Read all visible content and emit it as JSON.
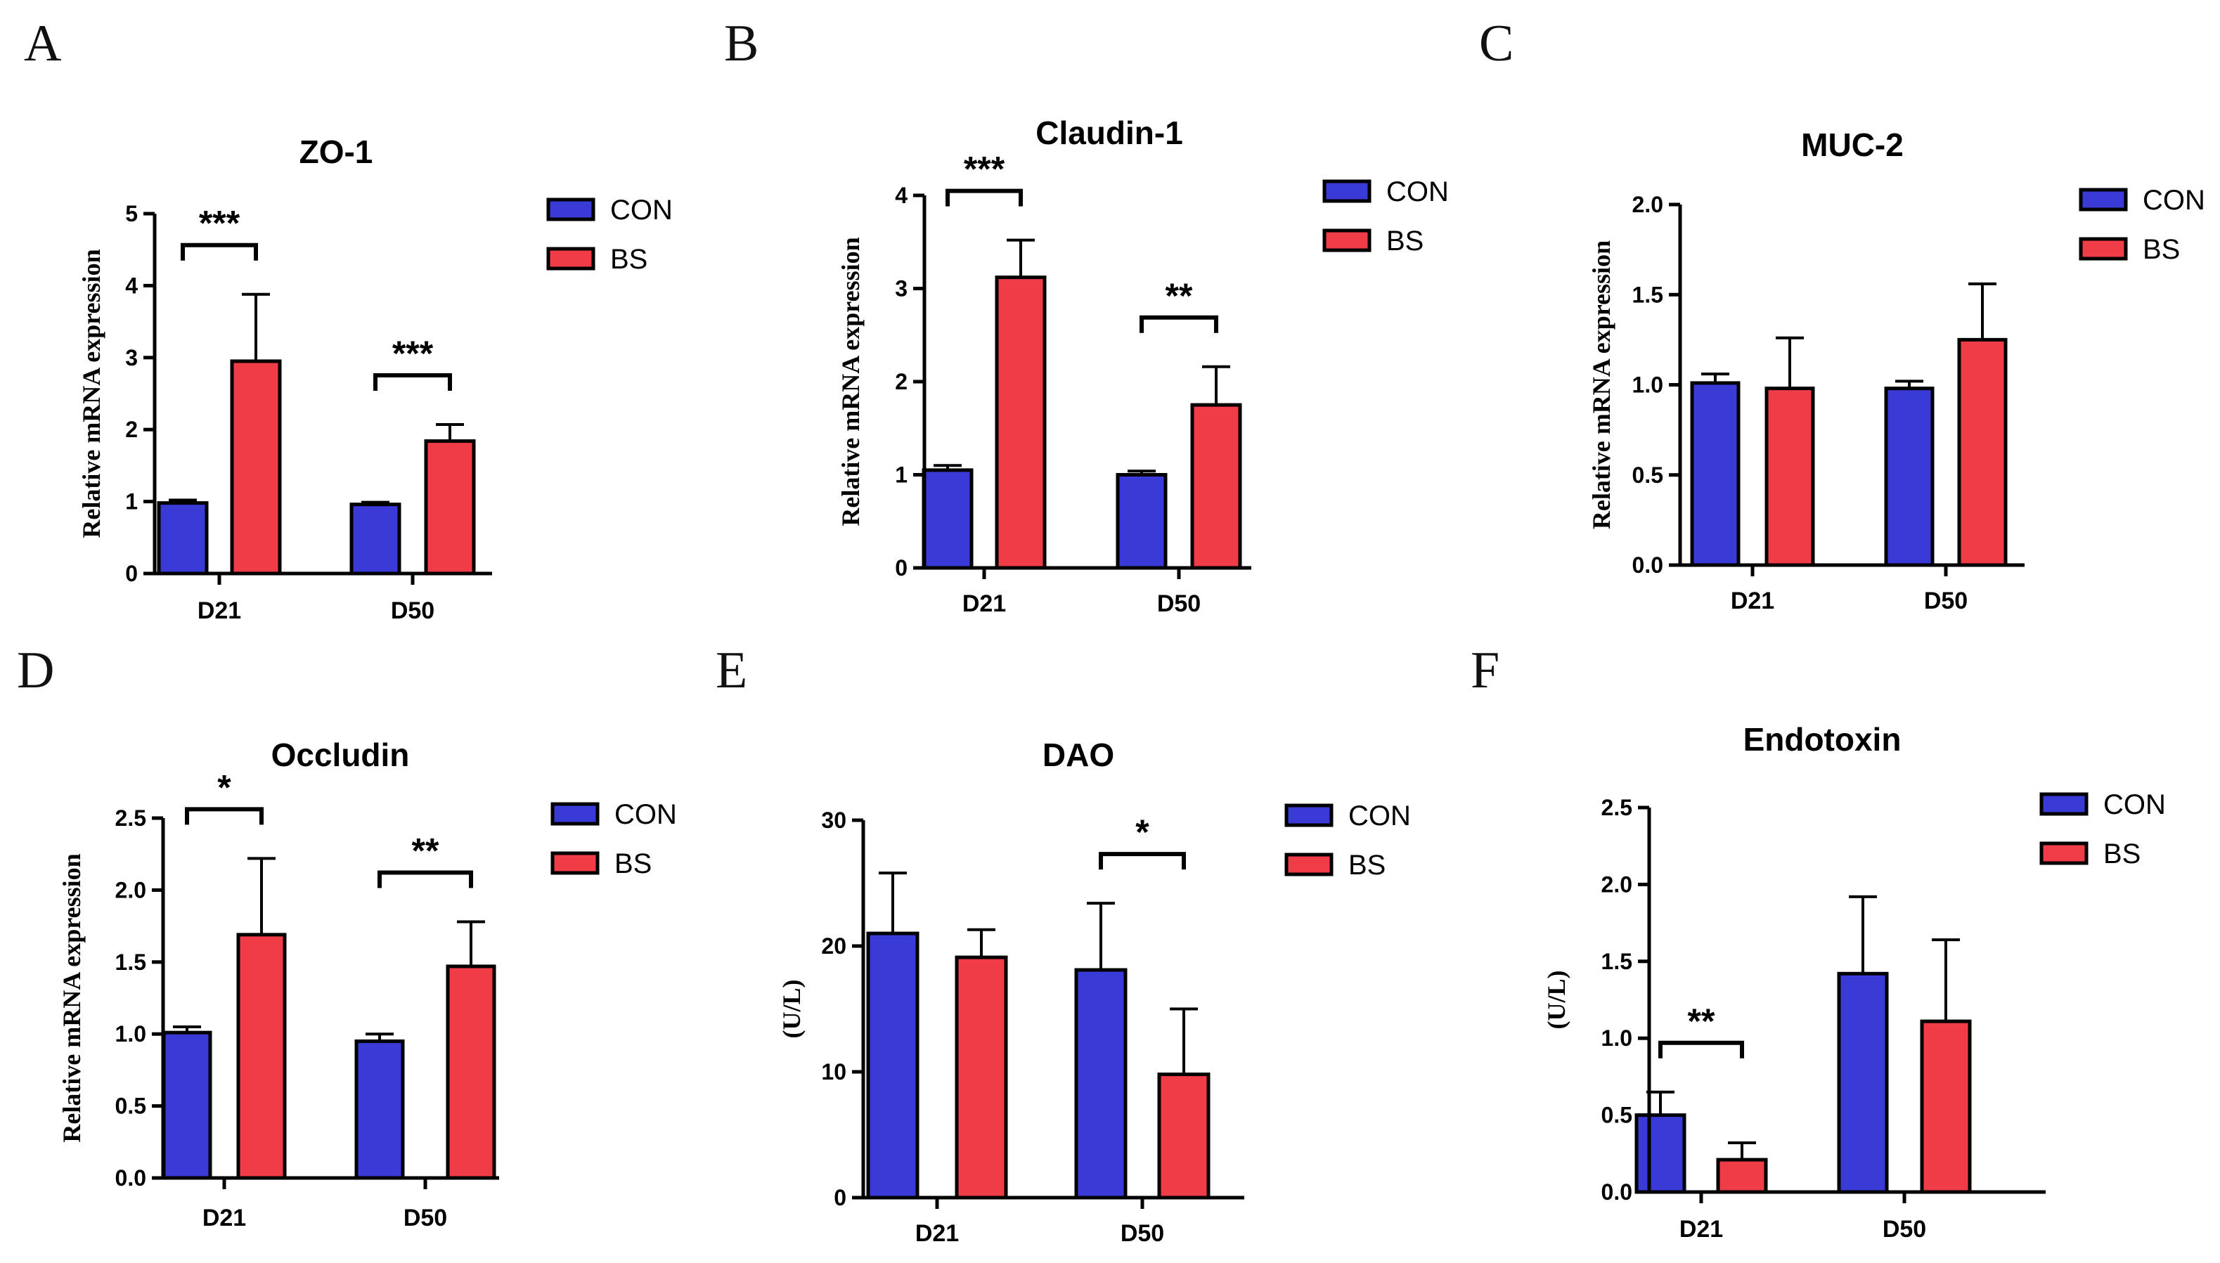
{
  "figure": {
    "colors": {
      "CON": "#3a3ad6",
      "BS": "#f03c46"
    },
    "legend_labels": [
      "CON",
      "BS"
    ]
  },
  "chart_data": [
    {
      "panel": "A",
      "type": "bar",
      "title": "ZO-1",
      "ylabel": "Relative mRNA expression",
      "xlabel": "",
      "categories": [
        "D21",
        "D50"
      ],
      "ylim": [
        0,
        5
      ],
      "yticks": [
        0,
        1,
        2,
        3,
        4,
        5
      ],
      "ytick_labels": [
        "0",
        "1",
        "2",
        "3",
        "4",
        "5"
      ],
      "series": [
        {
          "name": "CON",
          "values": [
            0.98,
            0.96
          ],
          "errors": [
            0.04,
            0.03
          ]
        },
        {
          "name": "BS",
          "values": [
            2.95,
            1.84
          ],
          "errors": [
            0.93,
            0.23
          ]
        }
      ],
      "significance": [
        {
          "category": "D21",
          "label": "***"
        },
        {
          "category": "D50",
          "label": "***"
        }
      ],
      "legend_position": "top-right"
    },
    {
      "panel": "B",
      "type": "bar",
      "title": "Claudin-1",
      "ylabel": "Relative mRNA expression",
      "xlabel": "",
      "categories": [
        "D21",
        "D50"
      ],
      "ylim": [
        0,
        4
      ],
      "yticks": [
        0,
        1,
        2,
        3,
        4
      ],
      "ytick_labels": [
        "0",
        "1",
        "2",
        "3",
        "4"
      ],
      "series": [
        {
          "name": "CON",
          "values": [
            1.05,
            1.0
          ],
          "errors": [
            0.05,
            0.04
          ]
        },
        {
          "name": "BS",
          "values": [
            3.12,
            1.75
          ],
          "errors": [
            0.4,
            0.41
          ]
        }
      ],
      "significance": [
        {
          "category": "D21",
          "label": "***"
        },
        {
          "category": "D50",
          "label": "**"
        }
      ],
      "legend_position": "top-right"
    },
    {
      "panel": "C",
      "type": "bar",
      "title": "MUC-2",
      "ylabel": "Relative mRNA expression",
      "xlabel": "",
      "categories": [
        "D21",
        "D50"
      ],
      "ylim": [
        0,
        2
      ],
      "yticks": [
        0,
        0.5,
        1,
        1.5,
        2
      ],
      "ytick_labels": [
        "0.0",
        "0.5",
        "1.0",
        "1.5",
        "2.0"
      ],
      "series": [
        {
          "name": "CON",
          "values": [
            1.01,
            0.98
          ],
          "errors": [
            0.05,
            0.04
          ]
        },
        {
          "name": "BS",
          "values": [
            0.98,
            1.25
          ],
          "errors": [
            0.28,
            0.31
          ]
        }
      ],
      "significance": [],
      "legend_position": "top-right"
    },
    {
      "panel": "D",
      "type": "bar",
      "title": "Occludin",
      "ylabel": "Relative mRNA expression",
      "xlabel": "",
      "categories": [
        "D21",
        "D50"
      ],
      "ylim": [
        0,
        2.5
      ],
      "yticks": [
        0,
        0.5,
        1,
        1.5,
        2,
        2.5
      ],
      "ytick_labels": [
        "0.0",
        "0.5",
        "1.0",
        "1.5",
        "2.0",
        "2.5"
      ],
      "series": [
        {
          "name": "CON",
          "values": [
            1.01,
            0.95
          ],
          "errors": [
            0.04,
            0.05
          ]
        },
        {
          "name": "BS",
          "values": [
            1.69,
            1.47
          ],
          "errors": [
            0.53,
            0.31
          ]
        }
      ],
      "significance": [
        {
          "category": "D21",
          "label": "*"
        },
        {
          "category": "D50",
          "label": "**"
        }
      ],
      "legend_position": "top-right"
    },
    {
      "panel": "E",
      "type": "bar",
      "title": "DAO",
      "ylabel": "(U/L)",
      "xlabel": "",
      "categories": [
        "D21",
        "D50"
      ],
      "ylim": [
        0,
        30
      ],
      "yticks": [
        0,
        10,
        20,
        30
      ],
      "ytick_labels": [
        "0",
        "10",
        "20",
        "30"
      ],
      "series": [
        {
          "name": "CON",
          "values": [
            21.0,
            18.1
          ],
          "errors": [
            4.8,
            5.3
          ]
        },
        {
          "name": "BS",
          "values": [
            19.1,
            9.8
          ],
          "errors": [
            2.2,
            5.2
          ]
        }
      ],
      "significance": [
        {
          "category": "D50",
          "label": "*"
        }
      ],
      "legend_position": "top-right"
    },
    {
      "panel": "F",
      "type": "bar",
      "title": "Endotoxin",
      "ylabel": "(U/L)",
      "xlabel": "",
      "categories": [
        "D21",
        "D50"
      ],
      "ylim": [
        0,
        2.5
      ],
      "yticks": [
        0,
        0.5,
        1,
        1.5,
        2,
        2.5
      ],
      "ytick_labels": [
        "0.0",
        "0.5",
        "1.0",
        "1.5",
        "2.0",
        "2.5"
      ],
      "series": [
        {
          "name": "CON",
          "values": [
            0.5,
            1.42
          ],
          "errors": [
            0.15,
            0.5
          ]
        },
        {
          "name": "BS",
          "values": [
            0.21,
            1.11
          ],
          "errors": [
            0.11,
            0.53
          ]
        }
      ],
      "significance": [
        {
          "category": "D21",
          "label": "**"
        }
      ],
      "legend_position": "top-right"
    }
  ]
}
